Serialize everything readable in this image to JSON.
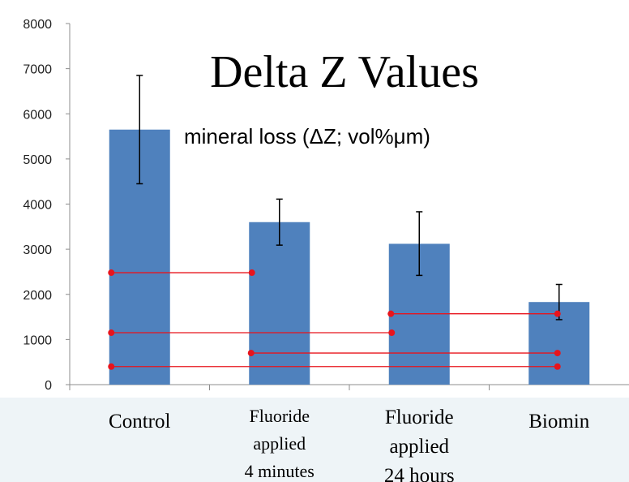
{
  "chart_data": {
    "type": "bar",
    "title": "Delta Z Values",
    "subtitle": "mineral loss (ΔZ; vol%μm)",
    "categories": [
      [
        "Control"
      ],
      [
        "Fluoride",
        "applied",
        "4 minutes"
      ],
      [
        "Fluoride",
        "applied",
        "24 hours"
      ],
      [
        "Biomin"
      ]
    ],
    "values": [
      5650,
      3600,
      3120,
      1830
    ],
    "error_high": [
      6850,
      4110,
      3830,
      2220
    ],
    "error_low": [
      4450,
      3090,
      2420,
      1440
    ],
    "ylim": [
      0,
      8000
    ],
    "yticks": [
      0,
      1000,
      2000,
      3000,
      4000,
      5000,
      6000,
      7000,
      8000
    ],
    "significance_brackets": [
      {
        "from": 0,
        "to": 1,
        "y": 2480
      },
      {
        "from": 2,
        "to": 3,
        "y": 1570
      },
      {
        "from": 0,
        "to": 2,
        "y": 1150
      },
      {
        "from": 1,
        "to": 3,
        "y": 700
      },
      {
        "from": 0,
        "to": 3,
        "y": 400
      }
    ],
    "colors": {
      "bar": "#4f81bd",
      "bracket": "#e8141c",
      "axis": "#8c8c8c",
      "label_band": "#eef4f7"
    }
  }
}
